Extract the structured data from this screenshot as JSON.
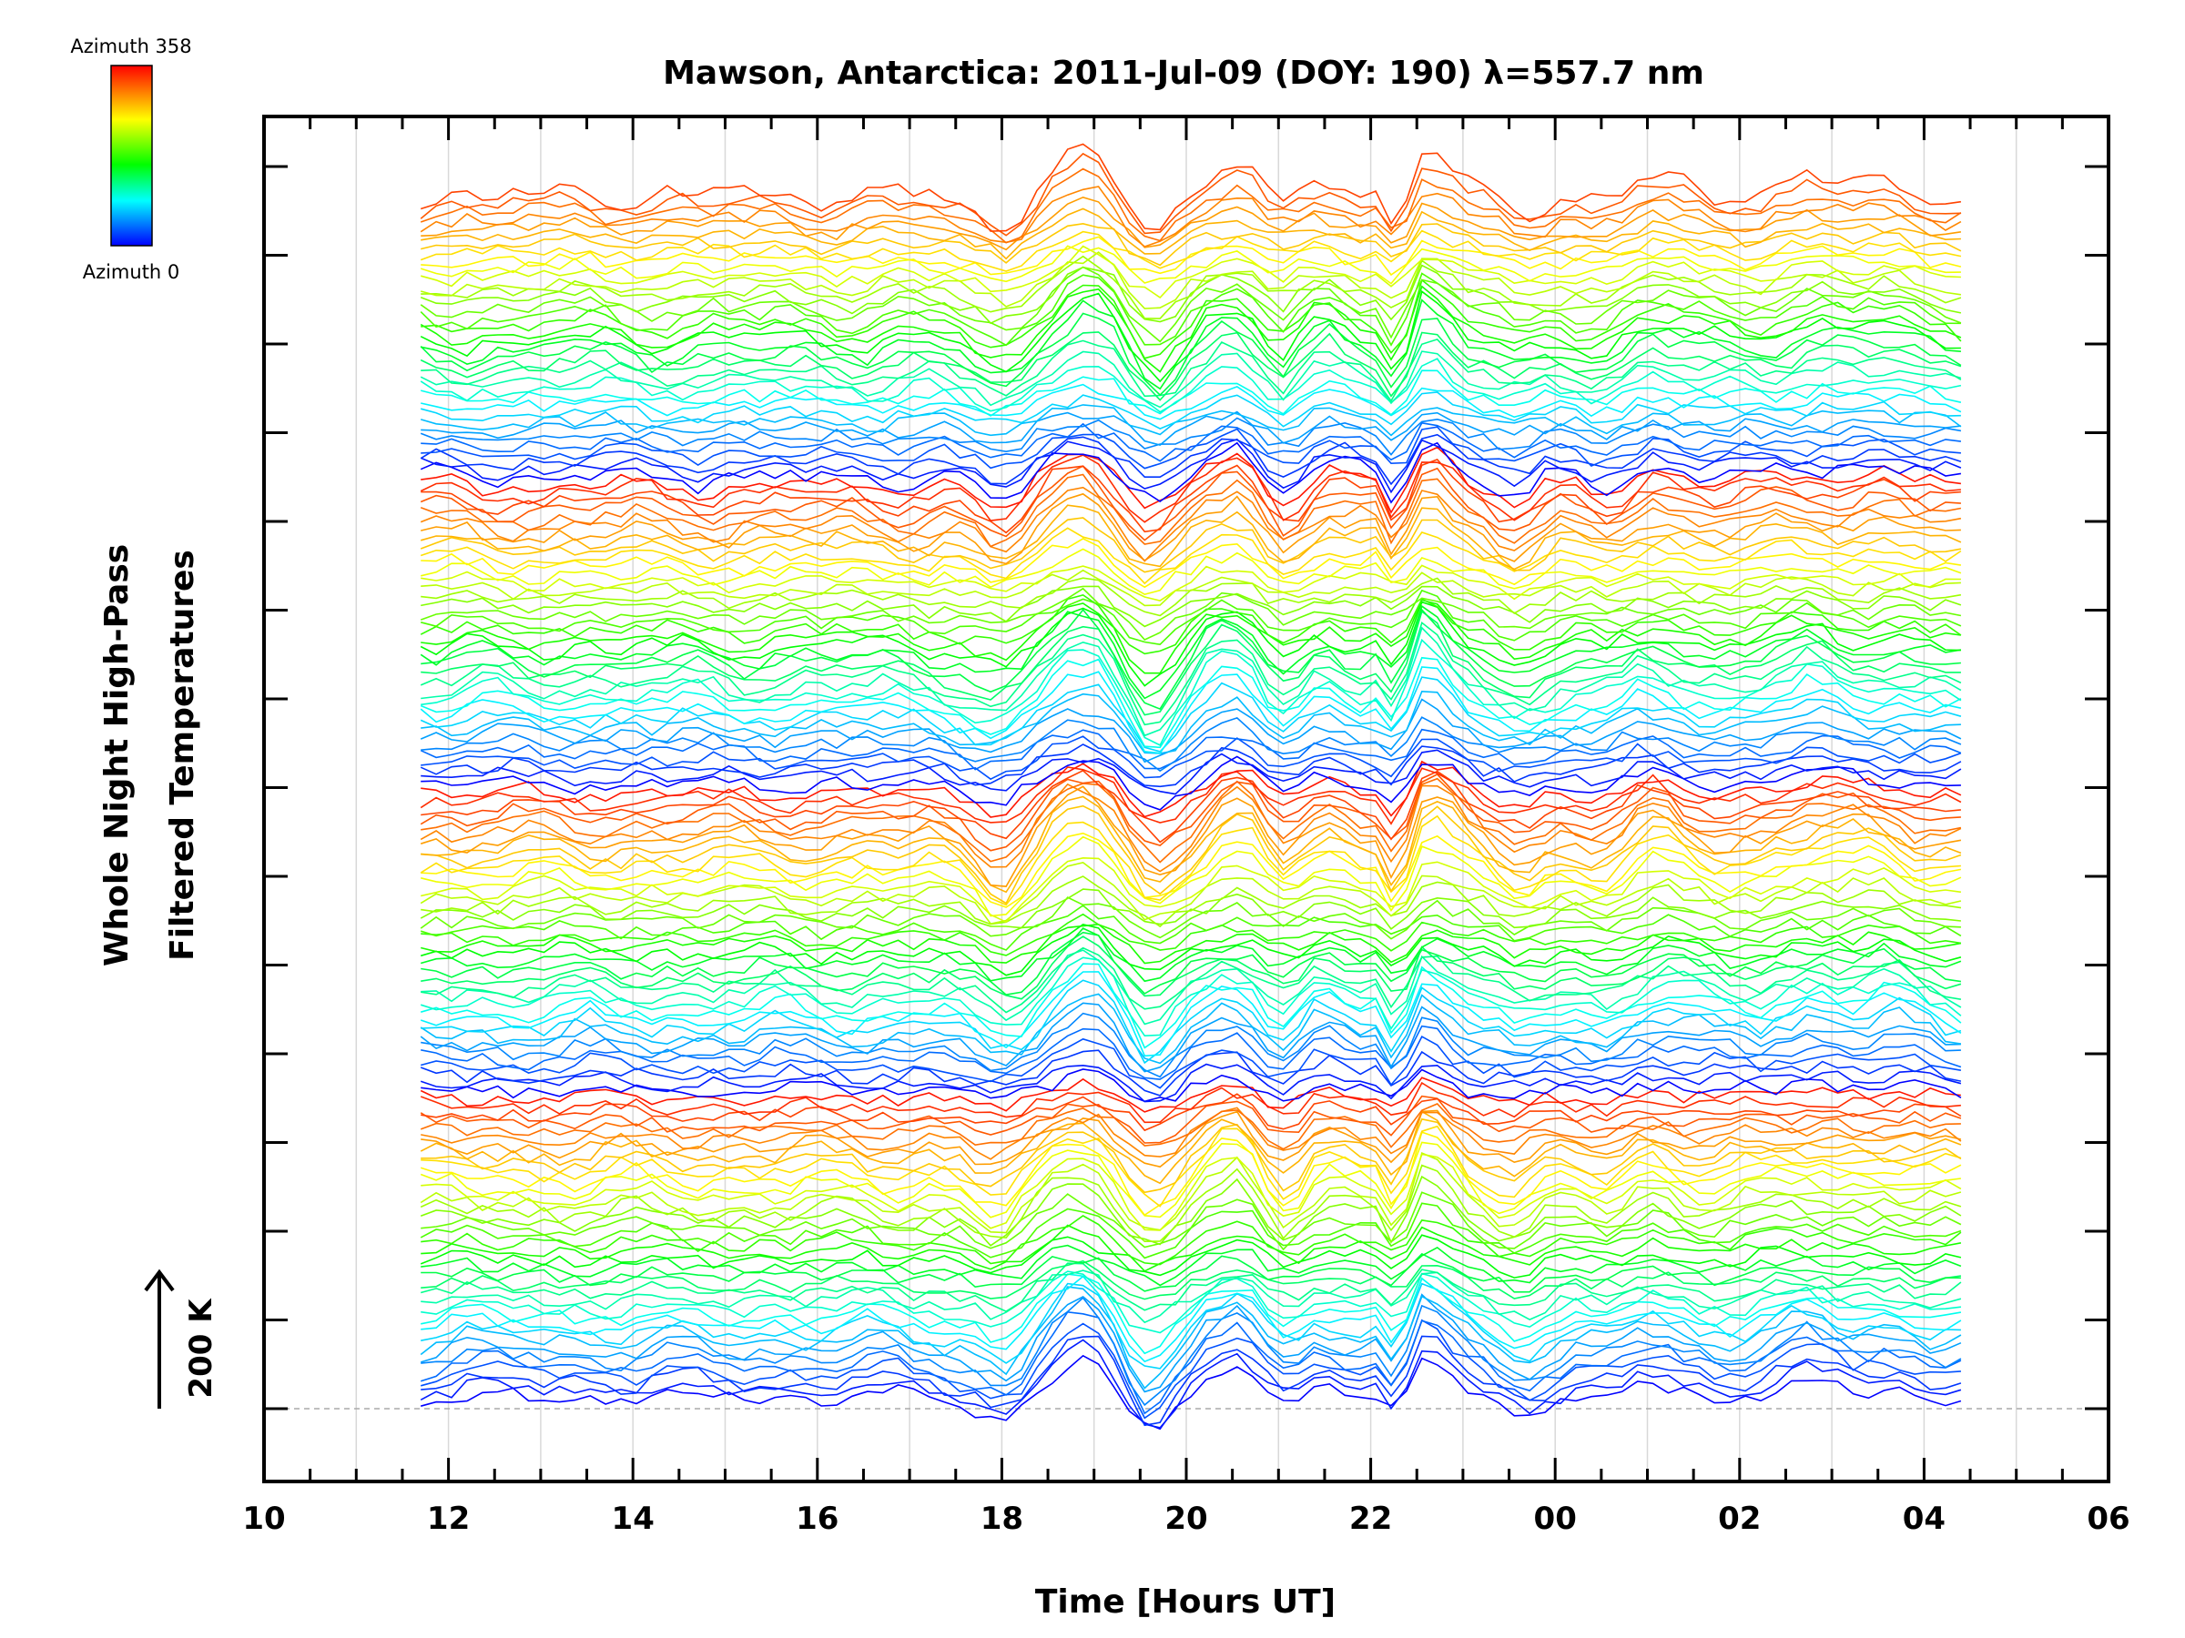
{
  "chart_data": {
    "type": "line",
    "title": "Mawson, Antarctica: 2011-Jul-09 (DOY: 190) λ=557.7 nm",
    "xlabel": "Time [Hours UT]",
    "ylabel_line1": "Whole Night High-Pass",
    "ylabel_line2": "Filtered Temperatures",
    "scale_label": "200 K",
    "colorbar": {
      "top_label": "Azimuth 358",
      "bottom_label": "Azimuth 0",
      "colors": [
        "#ff0000",
        "#ffff00",
        "#00ff00",
        "#00ffff",
        "#0000ff"
      ]
    },
    "x_tick_labels": [
      "10",
      "12",
      "14",
      "16",
      "18",
      "20",
      "22",
      "00",
      "02",
      "04",
      "06"
    ],
    "x_hours_major": [
      10,
      12,
      14,
      16,
      18,
      20,
      22,
      24,
      26,
      28,
      30
    ],
    "xlim": [
      10,
      30
    ],
    "data_xlim": [
      11.7,
      28.4
    ],
    "grid": "vertical, hourly",
    "series_count": 150,
    "azimuth_range": [
      0,
      358
    ]
  }
}
